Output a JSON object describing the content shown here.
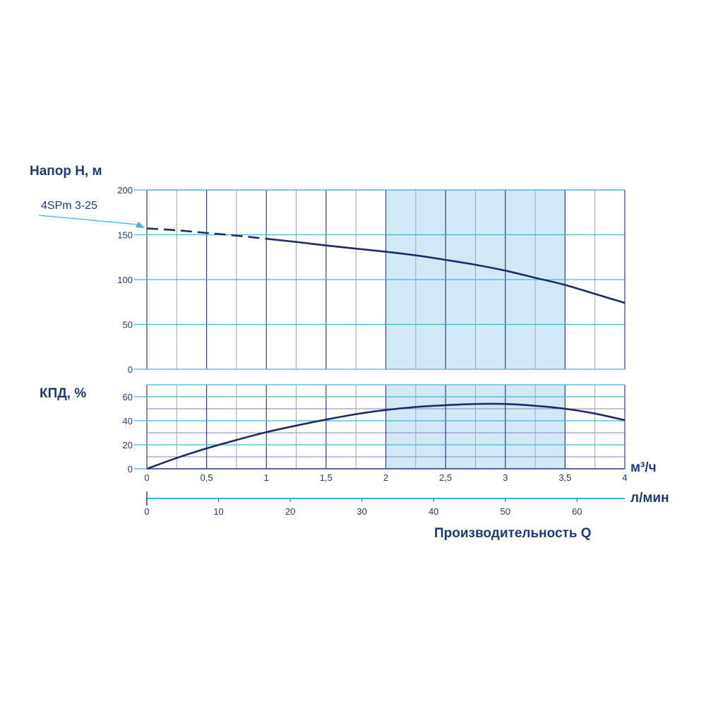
{
  "colors": {
    "curve": "#1f2a6b",
    "grid_h": "#3fb6df",
    "grid_v": "#2f3f80",
    "grid_v_minor": "#9aa3b8",
    "grid_eff_minor": "#8c7fb8",
    "band": "#d3e8f7",
    "text": "#1f3a7a",
    "pointer": "#3fb6df"
  },
  "chart_data": [
    {
      "type": "line",
      "title": "Напор H, м",
      "series_label": "4SPm 3-25",
      "xlim": [
        0,
        4
      ],
      "ylim": [
        0,
        200
      ],
      "y_ticks": [
        "0",
        "50",
        "100",
        "150",
        "200"
      ],
      "shaded_range": [
        2,
        3.5
      ],
      "dashed_until_x": 1,
      "series": [
        {
          "name": "4SPm 3-25",
          "x": [
            0,
            0.25,
            0.5,
            0.75,
            1,
            1.25,
            1.5,
            1.75,
            2,
            2.25,
            2.5,
            2.75,
            3,
            3.25,
            3.5,
            3.75,
            4
          ],
          "y": [
            157,
            155,
            152,
            149,
            145.5,
            142,
            138,
            134.5,
            131,
            127,
            122,
            116.5,
            110,
            102,
            94,
            84,
            74
          ]
        }
      ]
    },
    {
      "type": "line",
      "title": "КПД, %",
      "xlim": [
        0,
        4
      ],
      "ylim": [
        0,
        70
      ],
      "y_ticks": [
        "0",
        "20",
        "40",
        "60"
      ],
      "shaded_range": [
        2,
        3.5
      ],
      "series": [
        {
          "x": [
            0,
            0.25,
            0.5,
            0.75,
            1,
            1.25,
            1.5,
            1.75,
            2,
            2.25,
            2.5,
            2.75,
            3,
            3.25,
            3.5,
            3.75,
            4
          ],
          "y": [
            0,
            9,
            17,
            24,
            30.5,
            36,
            41,
            45.5,
            49,
            51.5,
            53,
            54,
            54,
            52.5,
            50,
            46,
            40.5
          ]
        }
      ]
    }
  ],
  "x_axis_m3h": {
    "unit": "м³/ч",
    "ticks": [
      "0",
      "0,5",
      "1",
      "1,5",
      "2",
      "2,5",
      "3",
      "3,5",
      "4"
    ]
  },
  "x_axis_lmin": {
    "unit": "л/мин",
    "ticks": [
      "0",
      "10",
      "20",
      "30",
      "40",
      "50",
      "60"
    ]
  },
  "x_title": "Производительность Q"
}
